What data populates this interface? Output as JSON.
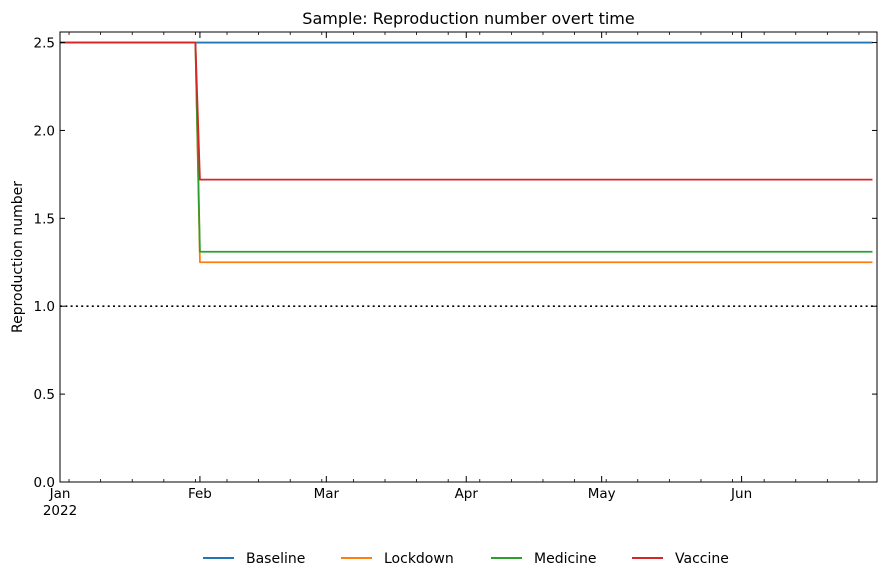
{
  "chart_data": {
    "type": "line",
    "title": "Sample: Reproduction number overt time",
    "xlabel": "",
    "ylabel": "Reproduction number",
    "xlim": [
      "2022-01-01",
      "2022-06-30"
    ],
    "ylim": [
      0,
      2.56
    ],
    "x_ticks": [
      {
        "date": "2022-01-01",
        "label": "Jan",
        "sublabel": "2022"
      },
      {
        "date": "2022-02-01",
        "label": "Feb",
        "sublabel": ""
      },
      {
        "date": "2022-03-01",
        "label": "Mar",
        "sublabel": ""
      },
      {
        "date": "2022-04-01",
        "label": "Apr",
        "sublabel": ""
      },
      {
        "date": "2022-05-01",
        "label": "May",
        "sublabel": ""
      },
      {
        "date": "2022-06-01",
        "label": "Jun",
        "sublabel": ""
      }
    ],
    "y_ticks": [
      {
        "value": 0.0,
        "label": "0.0"
      },
      {
        "value": 0.5,
        "label": "0.5"
      },
      {
        "value": 1.0,
        "label": "1.0"
      },
      {
        "value": 1.5,
        "label": "1.5"
      },
      {
        "value": 2.0,
        "label": "2.0"
      },
      {
        "value": 2.5,
        "label": "2.5"
      }
    ],
    "grid": false,
    "legend_position": "bottom-center",
    "reference_line": {
      "value": 1.0,
      "style": "dotted",
      "color": "#000000"
    },
    "series": [
      {
        "name": "Baseline",
        "color": "#1f77b4",
        "points": [
          [
            "2022-01-01",
            2.5
          ],
          [
            "2022-06-30",
            2.5
          ]
        ]
      },
      {
        "name": "Lockdown",
        "color": "#ff7f0e",
        "points": [
          [
            "2022-01-01",
            2.5
          ],
          [
            "2022-01-31",
            2.5
          ],
          [
            "2022-02-01",
            1.25
          ],
          [
            "2022-06-30",
            1.25
          ]
        ]
      },
      {
        "name": "Medicine",
        "color": "#2ca02c",
        "points": [
          [
            "2022-01-01",
            2.5
          ],
          [
            "2022-01-31",
            2.5
          ],
          [
            "2022-02-01",
            1.31
          ],
          [
            "2022-06-30",
            1.31
          ]
        ]
      },
      {
        "name": "Vaccine",
        "color": "#d62728",
        "points": [
          [
            "2022-01-01",
            2.5
          ],
          [
            "2022-01-31",
            2.5
          ],
          [
            "2022-02-01",
            1.72
          ],
          [
            "2022-06-30",
            1.72
          ]
        ]
      }
    ]
  }
}
